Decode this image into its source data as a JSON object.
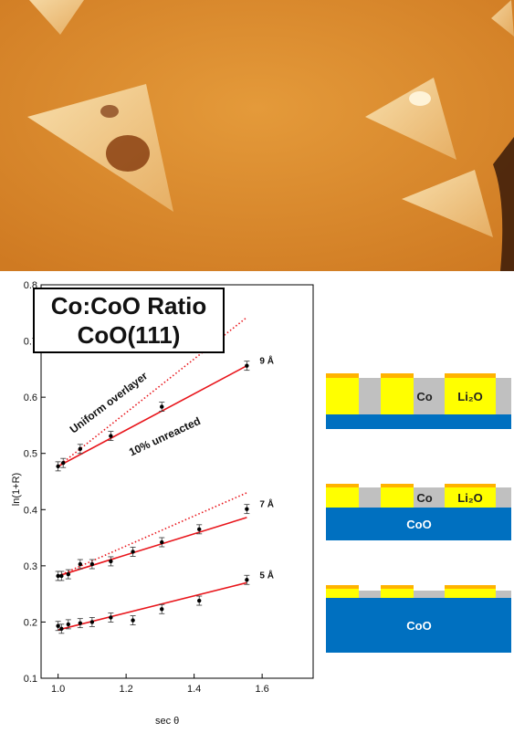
{
  "title": {
    "line1": "Co:CoO Ratio",
    "line2": "CoO(111)"
  },
  "chart_data": {
    "type": "scatter",
    "xlabel": "sec θ",
    "ylabel": "ln(1+R)",
    "xlim": [
      0.95,
      1.75
    ],
    "ylim": [
      0.1,
      0.8
    ],
    "xticks": [
      "1.0",
      "1.2",
      "1.4",
      "1.6"
    ],
    "yticks": [
      "0.1",
      "0.2",
      "0.3",
      "0.4",
      "0.5",
      "0.6",
      "0.7",
      "0.8"
    ],
    "series": [
      {
        "name": "9 Å",
        "x": [
          1.0,
          1.015,
          1.065,
          1.155,
          1.305,
          1.555
        ],
        "y": [
          0.477,
          0.483,
          0.508,
          0.531,
          0.583,
          0.656
        ],
        "fit": {
          "x": [
            1.0,
            1.555
          ],
          "y": [
            0.477,
            0.656
          ]
        }
      },
      {
        "name": "7 Å",
        "x": [
          1.0,
          1.01,
          1.03,
          1.065,
          1.1,
          1.155,
          1.22,
          1.305,
          1.415,
          1.555
        ],
        "y": [
          0.282,
          0.282,
          0.285,
          0.303,
          0.303,
          0.308,
          0.325,
          0.342,
          0.365,
          0.401
        ],
        "fit": {
          "x": [
            1.0,
            1.555
          ],
          "y": [
            0.282,
            0.386
          ]
        }
      },
      {
        "name": "5 Å",
        "x": [
          1.0,
          1.01,
          1.03,
          1.065,
          1.1,
          1.155,
          1.22,
          1.305,
          1.415,
          1.555
        ],
        "y": [
          0.193,
          0.188,
          0.196,
          0.198,
          0.2,
          0.208,
          0.203,
          0.223,
          0.238,
          0.275
        ],
        "fit": {
          "x": [
            1.0,
            1.555
          ],
          "y": [
            0.186,
            0.27
          ]
        }
      }
    ],
    "dotted_lines": [
      {
        "x": [
          1.0,
          1.555
        ],
        "y": [
          0.477,
          0.742
        ]
      },
      {
        "x": [
          1.0,
          1.555
        ],
        "y": [
          0.282,
          0.43
        ]
      }
    ],
    "annotations": [
      "Uniform overlayer",
      "10% unreacted"
    ]
  },
  "diagrams": [
    {
      "labels": [
        "Co",
        "Li₂O"
      ],
      "substrate": ""
    },
    {
      "labels": [
        "Co",
        "Li₂O"
      ],
      "substrate": "CoO"
    },
    {
      "labels": [],
      "substrate": "CoO"
    }
  ],
  "colors": {
    "fit": "#e8151b",
    "marker": "#000000",
    "yellow": "#ffff00",
    "orange": "#ffb300",
    "gray": "#c0c0c0",
    "blue": "#0070c0",
    "stm_bg": "#d98a2a"
  }
}
